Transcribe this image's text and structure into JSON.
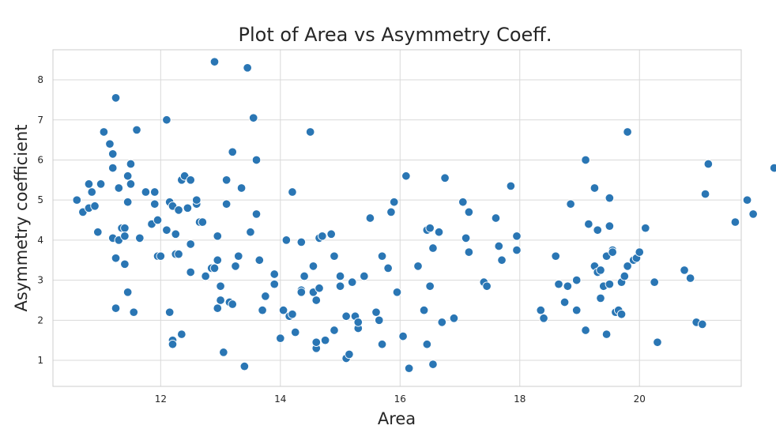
{
  "chart_data": {
    "type": "scatter",
    "title": "Plot of Area vs Asymmetry Coeff.",
    "xlabel": "Area",
    "ylabel": "Asymmetry coefficient",
    "xlim": [
      10.2,
      21.7
    ],
    "ylim": [
      0.35,
      8.75
    ],
    "xticks": [
      12,
      14,
      16,
      18,
      20
    ],
    "yticks": [
      1,
      2,
      3,
      4,
      5,
      6,
      7,
      8
    ],
    "grid": true,
    "colors": {
      "point": "#2a76b4",
      "point_edge": "#ffffff",
      "grid": "#d9d9d9",
      "frame": "#cccccc",
      "text": "#262626"
    },
    "points": [
      [
        10.6,
        5.0
      ],
      [
        10.7,
        4.7
      ],
      [
        10.8,
        4.8
      ],
      [
        10.8,
        5.4
      ],
      [
        10.85,
        5.2
      ],
      [
        10.9,
        4.85
      ],
      [
        10.95,
        4.2
      ],
      [
        11.0,
        5.4
      ],
      [
        11.05,
        6.7
      ],
      [
        11.15,
        6.4
      ],
      [
        11.2,
        6.15
      ],
      [
        11.2,
        5.8
      ],
      [
        11.2,
        4.05
      ],
      [
        11.25,
        3.55
      ],
      [
        11.25,
        2.3
      ],
      [
        11.25,
        7.55
      ],
      [
        11.3,
        5.3
      ],
      [
        11.3,
        4.0
      ],
      [
        11.35,
        4.3
      ],
      [
        11.4,
        4.3
      ],
      [
        11.4,
        4.1
      ],
      [
        11.4,
        3.4
      ],
      [
        11.45,
        5.6
      ],
      [
        11.45,
        4.95
      ],
      [
        11.45,
        2.7
      ],
      [
        11.5,
        5.9
      ],
      [
        11.5,
        5.4
      ],
      [
        11.55,
        2.2
      ],
      [
        11.6,
        6.75
      ],
      [
        11.65,
        4.05
      ],
      [
        11.75,
        5.2
      ],
      [
        11.85,
        4.4
      ],
      [
        11.9,
        5.2
      ],
      [
        11.9,
        4.9
      ],
      [
        11.95,
        4.5
      ],
      [
        11.95,
        3.6
      ],
      [
        12.0,
        3.6
      ],
      [
        12.1,
        7.0
      ],
      [
        12.1,
        4.25
      ],
      [
        12.15,
        4.95
      ],
      [
        12.15,
        2.2
      ],
      [
        12.2,
        4.85
      ],
      [
        12.2,
        1.5
      ],
      [
        12.2,
        1.4
      ],
      [
        12.25,
        4.15
      ],
      [
        12.25,
        3.65
      ],
      [
        12.3,
        3.65
      ],
      [
        12.3,
        4.75
      ],
      [
        12.35,
        5.5
      ],
      [
        12.35,
        1.65
      ],
      [
        12.4,
        5.6
      ],
      [
        12.45,
        4.8
      ],
      [
        12.5,
        3.2
      ],
      [
        12.5,
        3.9
      ],
      [
        12.5,
        5.5
      ],
      [
        12.6,
        4.9
      ],
      [
        12.6,
        5.0
      ],
      [
        12.65,
        4.45
      ],
      [
        12.7,
        4.45
      ],
      [
        12.75,
        3.1
      ],
      [
        12.85,
        3.3
      ],
      [
        12.9,
        8.45
      ],
      [
        12.9,
        3.3
      ],
      [
        12.95,
        4.1
      ],
      [
        12.95,
        2.3
      ],
      [
        12.95,
        3.5
      ],
      [
        13.0,
        2.5
      ],
      [
        13.0,
        2.85
      ],
      [
        13.05,
        1.2
      ],
      [
        13.1,
        5.5
      ],
      [
        13.1,
        4.9
      ],
      [
        13.15,
        2.45
      ],
      [
        13.2,
        6.2
      ],
      [
        13.2,
        2.4
      ],
      [
        13.25,
        3.35
      ],
      [
        13.3,
        3.6
      ],
      [
        13.35,
        5.3
      ],
      [
        13.4,
        0.85
      ],
      [
        13.45,
        8.3
      ],
      [
        13.5,
        4.2
      ],
      [
        13.55,
        7.05
      ],
      [
        13.6,
        6.0
      ],
      [
        13.6,
        4.65
      ],
      [
        13.65,
        3.5
      ],
      [
        13.7,
        2.25
      ],
      [
        13.75,
        2.6
      ],
      [
        13.9,
        2.9
      ],
      [
        13.9,
        3.15
      ],
      [
        14.0,
        1.55
      ],
      [
        14.05,
        2.25
      ],
      [
        14.1,
        4.0
      ],
      [
        14.15,
        2.1
      ],
      [
        14.2,
        2.15
      ],
      [
        14.2,
        5.2
      ],
      [
        14.25,
        1.7
      ],
      [
        14.35,
        2.75
      ],
      [
        14.35,
        3.95
      ],
      [
        14.35,
        2.7
      ],
      [
        14.4,
        3.1
      ],
      [
        14.5,
        6.7
      ],
      [
        14.55,
        2.7
      ],
      [
        14.55,
        3.35
      ],
      [
        14.6,
        1.3
      ],
      [
        14.6,
        1.45
      ],
      [
        14.6,
        2.5
      ],
      [
        14.65,
        4.05
      ],
      [
        14.65,
        2.8
      ],
      [
        14.7,
        4.1
      ],
      [
        14.75,
        1.5
      ],
      [
        14.85,
        4.15
      ],
      [
        14.9,
        1.75
      ],
      [
        14.9,
        3.6
      ],
      [
        15.0,
        3.1
      ],
      [
        15.0,
        2.85
      ],
      [
        15.1,
        2.1
      ],
      [
        15.1,
        1.05
      ],
      [
        15.15,
        1.15
      ],
      [
        15.2,
        2.95
      ],
      [
        15.25,
        2.1
      ],
      [
        15.3,
        1.8
      ],
      [
        15.3,
        1.95
      ],
      [
        15.4,
        3.1
      ],
      [
        15.5,
        4.55
      ],
      [
        15.6,
        2.2
      ],
      [
        15.65,
        2.0
      ],
      [
        15.7,
        1.4
      ],
      [
        15.7,
        3.6
      ],
      [
        15.8,
        3.3
      ],
      [
        15.85,
        4.7
      ],
      [
        15.9,
        4.95
      ],
      [
        15.95,
        2.7
      ],
      [
        16.05,
        1.6
      ],
      [
        16.1,
        5.6
      ],
      [
        16.15,
        0.8
      ],
      [
        16.3,
        3.35
      ],
      [
        16.4,
        2.25
      ],
      [
        16.45,
        4.25
      ],
      [
        16.5,
        4.3
      ],
      [
        16.45,
        1.4
      ],
      [
        16.5,
        2.85
      ],
      [
        16.55,
        0.9
      ],
      [
        16.55,
        3.8
      ],
      [
        16.65,
        4.2
      ],
      [
        16.7,
        1.95
      ],
      [
        16.75,
        5.55
      ],
      [
        16.9,
        2.05
      ],
      [
        17.05,
        4.95
      ],
      [
        17.1,
        4.05
      ],
      [
        17.15,
        4.7
      ],
      [
        17.15,
        3.7
      ],
      [
        17.4,
        2.95
      ],
      [
        17.45,
        2.85
      ],
      [
        17.6,
        4.55
      ],
      [
        17.65,
        3.85
      ],
      [
        17.7,
        3.5
      ],
      [
        17.85,
        5.35
      ],
      [
        17.95,
        4.1
      ],
      [
        17.95,
        3.75
      ],
      [
        18.35,
        2.25
      ],
      [
        18.4,
        2.05
      ],
      [
        18.6,
        3.6
      ],
      [
        18.65,
        2.9
      ],
      [
        18.75,
        2.45
      ],
      [
        18.8,
        2.85
      ],
      [
        18.85,
        4.9
      ],
      [
        18.95,
        3.0
      ],
      [
        18.95,
        2.25
      ],
      [
        19.1,
        1.75
      ],
      [
        19.1,
        6.0
      ],
      [
        19.15,
        4.4
      ],
      [
        19.25,
        5.3
      ],
      [
        19.25,
        3.35
      ],
      [
        19.3,
        4.25
      ],
      [
        19.3,
        3.2
      ],
      [
        19.35,
        3.25
      ],
      [
        19.35,
        2.55
      ],
      [
        19.4,
        2.85
      ],
      [
        19.45,
        1.65
      ],
      [
        19.45,
        3.6
      ],
      [
        19.5,
        2.9
      ],
      [
        19.5,
        5.05
      ],
      [
        19.5,
        4.35
      ],
      [
        19.55,
        3.75
      ],
      [
        19.55,
        3.7
      ],
      [
        19.6,
        2.2
      ],
      [
        19.65,
        2.25
      ],
      [
        19.7,
        2.15
      ],
      [
        19.7,
        2.95
      ],
      [
        19.75,
        3.1
      ],
      [
        19.8,
        6.7
      ],
      [
        19.8,
        3.35
      ],
      [
        19.9,
        3.5
      ],
      [
        19.95,
        3.55
      ],
      [
        20.0,
        3.7
      ],
      [
        20.1,
        4.3
      ],
      [
        20.25,
        2.95
      ],
      [
        20.3,
        1.45
      ],
      [
        20.75,
        3.25
      ],
      [
        20.85,
        3.05
      ],
      [
        20.95,
        1.95
      ],
      [
        21.05,
        1.9
      ],
      [
        21.1,
        5.15
      ],
      [
        21.15,
        5.9
      ],
      [
        21.6,
        4.45
      ],
      [
        21.8,
        5.0
      ],
      [
        21.9,
        4.65
      ],
      [
        22.25,
        5.8
      ]
    ]
  }
}
